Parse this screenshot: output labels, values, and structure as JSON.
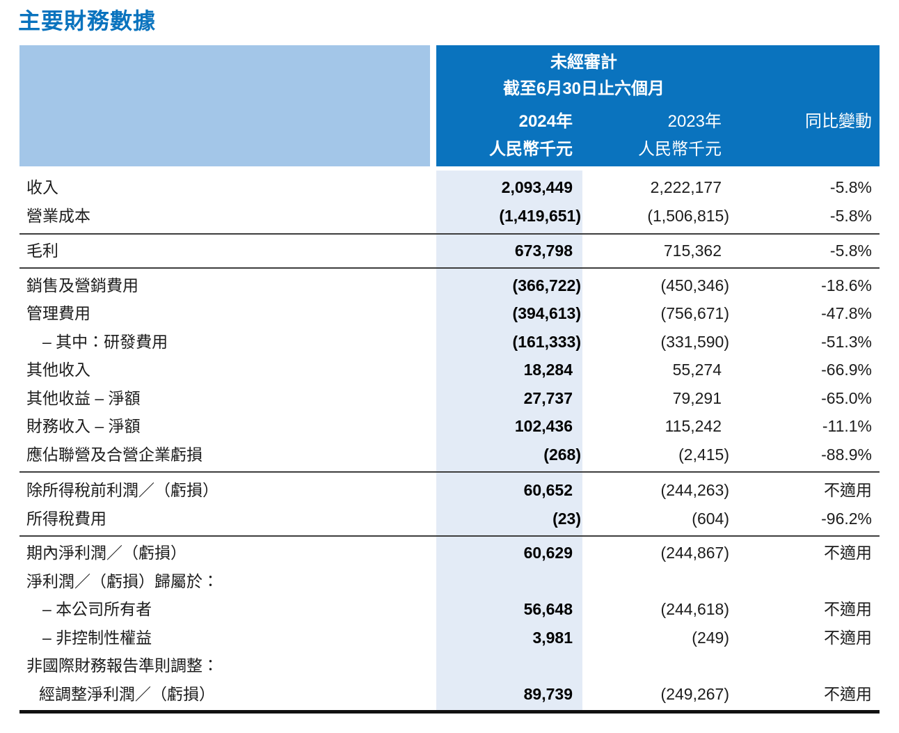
{
  "title": "主要財務數據",
  "colors": {
    "accent_blue": "#0a73be",
    "header_light_blue": "#a3c6e8",
    "column_band_blue": "#e3ebf6"
  },
  "table": {
    "header": {
      "unaudited_label": "未經審計",
      "period_label": "截至6月30日止六個月",
      "col_2024_year": "2024年",
      "col_2024_unit": "人民幣千元",
      "col_2023_year": "2023年",
      "col_2023_unit": "人民幣千元",
      "col_change_label": "同比變動"
    },
    "sections": [
      {
        "rows": [
          {
            "label": "收入",
            "v2024": "2,093,449",
            "v2023": "2,222,177",
            "change": "-5.8%"
          },
          {
            "label": "營業成本",
            "v2024": "(1,419,651)",
            "v2023": "(1,506,815)",
            "change": "-5.8%"
          }
        ]
      },
      {
        "rows": [
          {
            "label": "毛利",
            "v2024": "673,798",
            "v2023": "715,362",
            "change": "-5.8%"
          }
        ]
      },
      {
        "rows": [
          {
            "label": "銷售及營銷費用",
            "v2024": "(366,722)",
            "v2023": "(450,346)",
            "change": "-18.6%"
          },
          {
            "label": "管理費用",
            "v2024": "(394,613)",
            "v2023": "(756,671)",
            "change": "-47.8%"
          },
          {
            "label": "– 其中：研發費用",
            "v2024": "(161,333)",
            "v2023": "(331,590)",
            "change": "-51.3%"
          },
          {
            "label": "其他收入",
            "v2024": "18,284",
            "v2023": "55,274",
            "change": "-66.9%"
          },
          {
            "label": "其他收益 – 淨額",
            "v2024": "27,737",
            "v2023": "79,291",
            "change": "-65.0%"
          },
          {
            "label": "財務收入 – 淨額",
            "v2024": "102,436",
            "v2023": "115,242",
            "change": "-11.1%"
          },
          {
            "label": "應佔聯營及合營企業虧損",
            "v2024": "(268)",
            "v2023": "(2,415)",
            "change": "-88.9%"
          }
        ]
      },
      {
        "rows": [
          {
            "label": "除所得稅前利潤／（虧損）",
            "v2024": "60,652",
            "v2023": "(244,263)",
            "change": "不適用"
          },
          {
            "label": "所得稅費用",
            "v2024": "(23)",
            "v2023": "(604)",
            "change": "-96.2%"
          }
        ]
      },
      {
        "rows": [
          {
            "label": "期內淨利潤／（虧損）",
            "v2024": "60,629",
            "v2023": "(244,867)",
            "change": "不適用"
          },
          {
            "label": "淨利潤／（虧損）歸屬於：",
            "v2024": "",
            "v2023": "",
            "change": ""
          },
          {
            "label": "– 本公司所有者",
            "v2024": "56,648",
            "v2023": "(244,618)",
            "change": "不適用"
          },
          {
            "label": "– 非控制性權益",
            "v2024": "3,981",
            "v2023": "(249)",
            "change": "不適用"
          },
          {
            "label": "非國際財務報告準則調整：",
            "v2024": "",
            "v2023": "",
            "change": ""
          },
          {
            "label": "經調整淨利潤／（虧損）",
            "v2024": "89,739",
            "v2023": "(249,267)",
            "change": "不適用"
          }
        ]
      }
    ]
  }
}
